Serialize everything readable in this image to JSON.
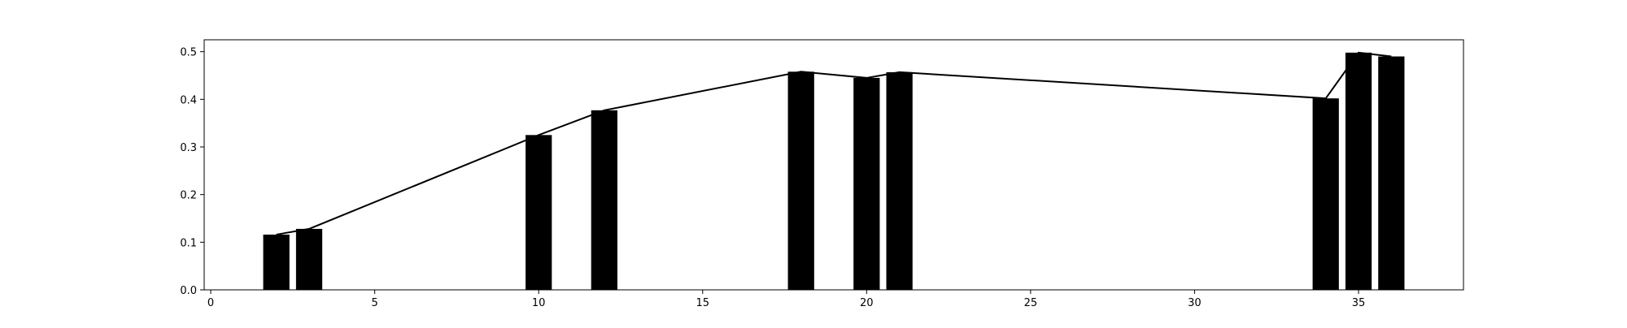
{
  "chart_data": {
    "type": "bar",
    "title": "",
    "xlabel": "",
    "ylabel": "",
    "xlim": [
      -0.2,
      38.2
    ],
    "ylim": [
      0,
      0.525
    ],
    "xticks": [
      0,
      5,
      10,
      15,
      20,
      25,
      30,
      35
    ],
    "yticks": [
      0.0,
      0.1,
      0.2,
      0.3,
      0.4,
      0.5
    ],
    "xtick_labels": [
      "0",
      "5",
      "10",
      "15",
      "20",
      "25",
      "30",
      "35"
    ],
    "ytick_labels": [
      "0.0",
      "0.1",
      "0.2",
      "0.3",
      "0.4",
      "0.5"
    ],
    "grid": false,
    "legend": "none",
    "bar_width": 0.8,
    "bar_color": "#000000",
    "line_color": "#000000",
    "series": [
      {
        "type": "bar",
        "x": [
          2,
          3,
          10,
          12,
          18,
          20,
          21,
          34,
          35,
          36
        ],
        "values": [
          0.116,
          0.128,
          0.325,
          0.377,
          0.458,
          0.445,
          0.457,
          0.402,
          0.498,
          0.49
        ]
      },
      {
        "type": "line",
        "x": [
          2,
          3,
          10,
          12,
          18,
          20,
          21,
          34,
          35,
          36
        ],
        "values": [
          0.116,
          0.128,
          0.325,
          0.377,
          0.458,
          0.445,
          0.457,
          0.402,
          0.498,
          0.49
        ]
      }
    ]
  }
}
